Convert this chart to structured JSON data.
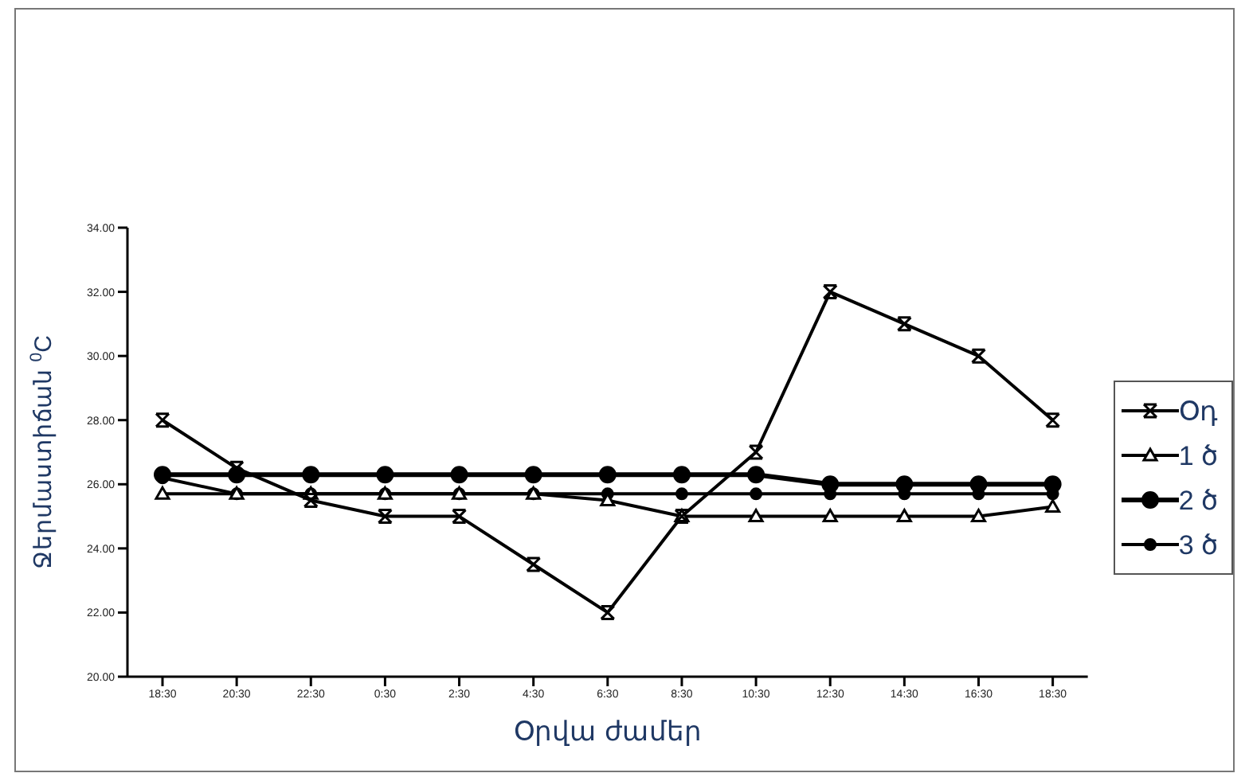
{
  "chart_data": {
    "type": "line",
    "xlabel": "Օրվա ժամեր",
    "ylabel": "Ջերմաստիճան $^{0}$C",
    "categories": [
      "18:30",
      "20:30",
      "22:30",
      "0:30",
      "2:30",
      "4:30",
      "6:30",
      "8:30",
      "10:30",
      "12:30",
      "14:30",
      "16:30",
      "18:30"
    ],
    "series": [
      {
        "name": "Օդ",
        "color": "#000000",
        "marker": "cross",
        "values": [
          28,
          26.5,
          25.5,
          25,
          25,
          23.5,
          22,
          25,
          27,
          32,
          31,
          30,
          28
        ]
      },
      {
        "name": "1 ծ",
        "color": "#000000",
        "marker": "triangle",
        "values": [
          25.7,
          25.7,
          25.7,
          25.7,
          25.7,
          25.7,
          25.5,
          25,
          25,
          25,
          25,
          25,
          25.3
        ]
      },
      {
        "name": "2 ծ",
        "color": "#000000",
        "marker": "circle",
        "values": [
          26.3,
          26.3,
          26.3,
          26.3,
          26.3,
          26.3,
          26.3,
          26.3,
          26.3,
          26,
          26,
          26,
          26
        ]
      },
      {
        "name": "3 ծ",
        "color": "#000000",
        "marker": "circle",
        "values": [
          26.2,
          25.7,
          25.7,
          25.7,
          25.7,
          25.7,
          25.7,
          25.7,
          25.7,
          25.7,
          25.7,
          25.7,
          25.7
        ]
      }
    ],
    "ylim": [
      20,
      34
    ],
    "yticks": [
      {
        "value": 20,
        "label": "20.00"
      },
      {
        "value": 22,
        "label": "22.00"
      },
      {
        "value": 24,
        "label": "24.00"
      },
      {
        "value": 26,
        "label": "26.00"
      },
      {
        "value": 28,
        "label": "28.00"
      },
      {
        "value": 30,
        "label": "30.00"
      },
      {
        "value": 32,
        "label": "32.00"
      },
      {
        "value": 34,
        "label": "34.00"
      }
    ],
    "legend": "right",
    "grid": false,
    "line_style": "solid"
  }
}
